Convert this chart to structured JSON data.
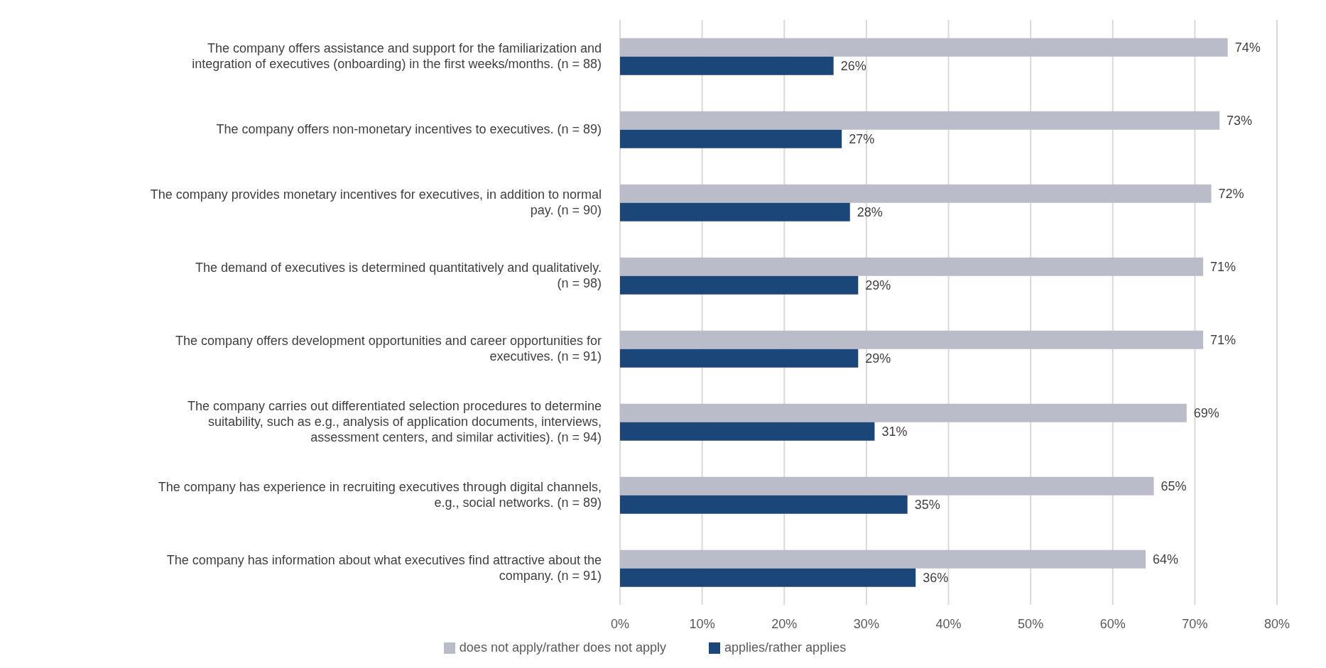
{
  "chart_data": {
    "type": "bar",
    "orientation": "horizontal",
    "categories": [
      "The company offers assistance and support for the familiarization and integration of executives (onboarding) in the first weeks/months. (n = 88)",
      "The company offers non-monetary incentives to executives. (n = 89)",
      "The company provides monetary incentives for executives, in addition to normal pay. (n = 90)",
      "The demand of executives is determined quantitatively and qualitatively. (n = 98)",
      "The company offers development opportunities and career opportunities for executives. (n = 91)",
      "The company carries out differentiated selection procedures to determine suitability, such as e.g., analysis of application documents, interviews, assessment centers, and similar activities). (n = 94)",
      "The company has experience in recruiting executives through digital channels, e.g., social networks. (n = 89)",
      "The company has information about what executives find attractive about the company. (n = 91)"
    ],
    "series": [
      {
        "name": "does not apply/rather does not apply",
        "color": "#bbbcc9",
        "values": [
          74,
          73,
          72,
          71,
          71,
          69,
          65,
          64
        ],
        "value_labels": [
          "74%",
          "73%",
          "72%",
          "71%",
          "71%",
          "69%",
          "65%",
          "64%"
        ]
      },
      {
        "name": "applies/rather applies",
        "color": "#1b4679",
        "values": [
          26,
          27,
          28,
          29,
          29,
          31,
          35,
          36
        ],
        "value_labels": [
          "26%",
          "27%",
          "28%",
          "29%",
          "29%",
          "31%",
          "35%",
          "36%"
        ]
      }
    ],
    "xlim": [
      0,
      80
    ],
    "xticks": [
      {
        "value": 0,
        "label": "0%"
      },
      {
        "value": 10,
        "label": "10%"
      },
      {
        "value": 20,
        "label": "20%"
      },
      {
        "value": 30,
        "label": "30%"
      },
      {
        "value": 40,
        "label": "40%"
      },
      {
        "value": 50,
        "label": "50%"
      },
      {
        "value": 60,
        "label": "60%"
      },
      {
        "value": 70,
        "label": "70%"
      },
      {
        "value": 80,
        "label": "80%"
      }
    ],
    "grid": "x",
    "legend": "bottom"
  }
}
